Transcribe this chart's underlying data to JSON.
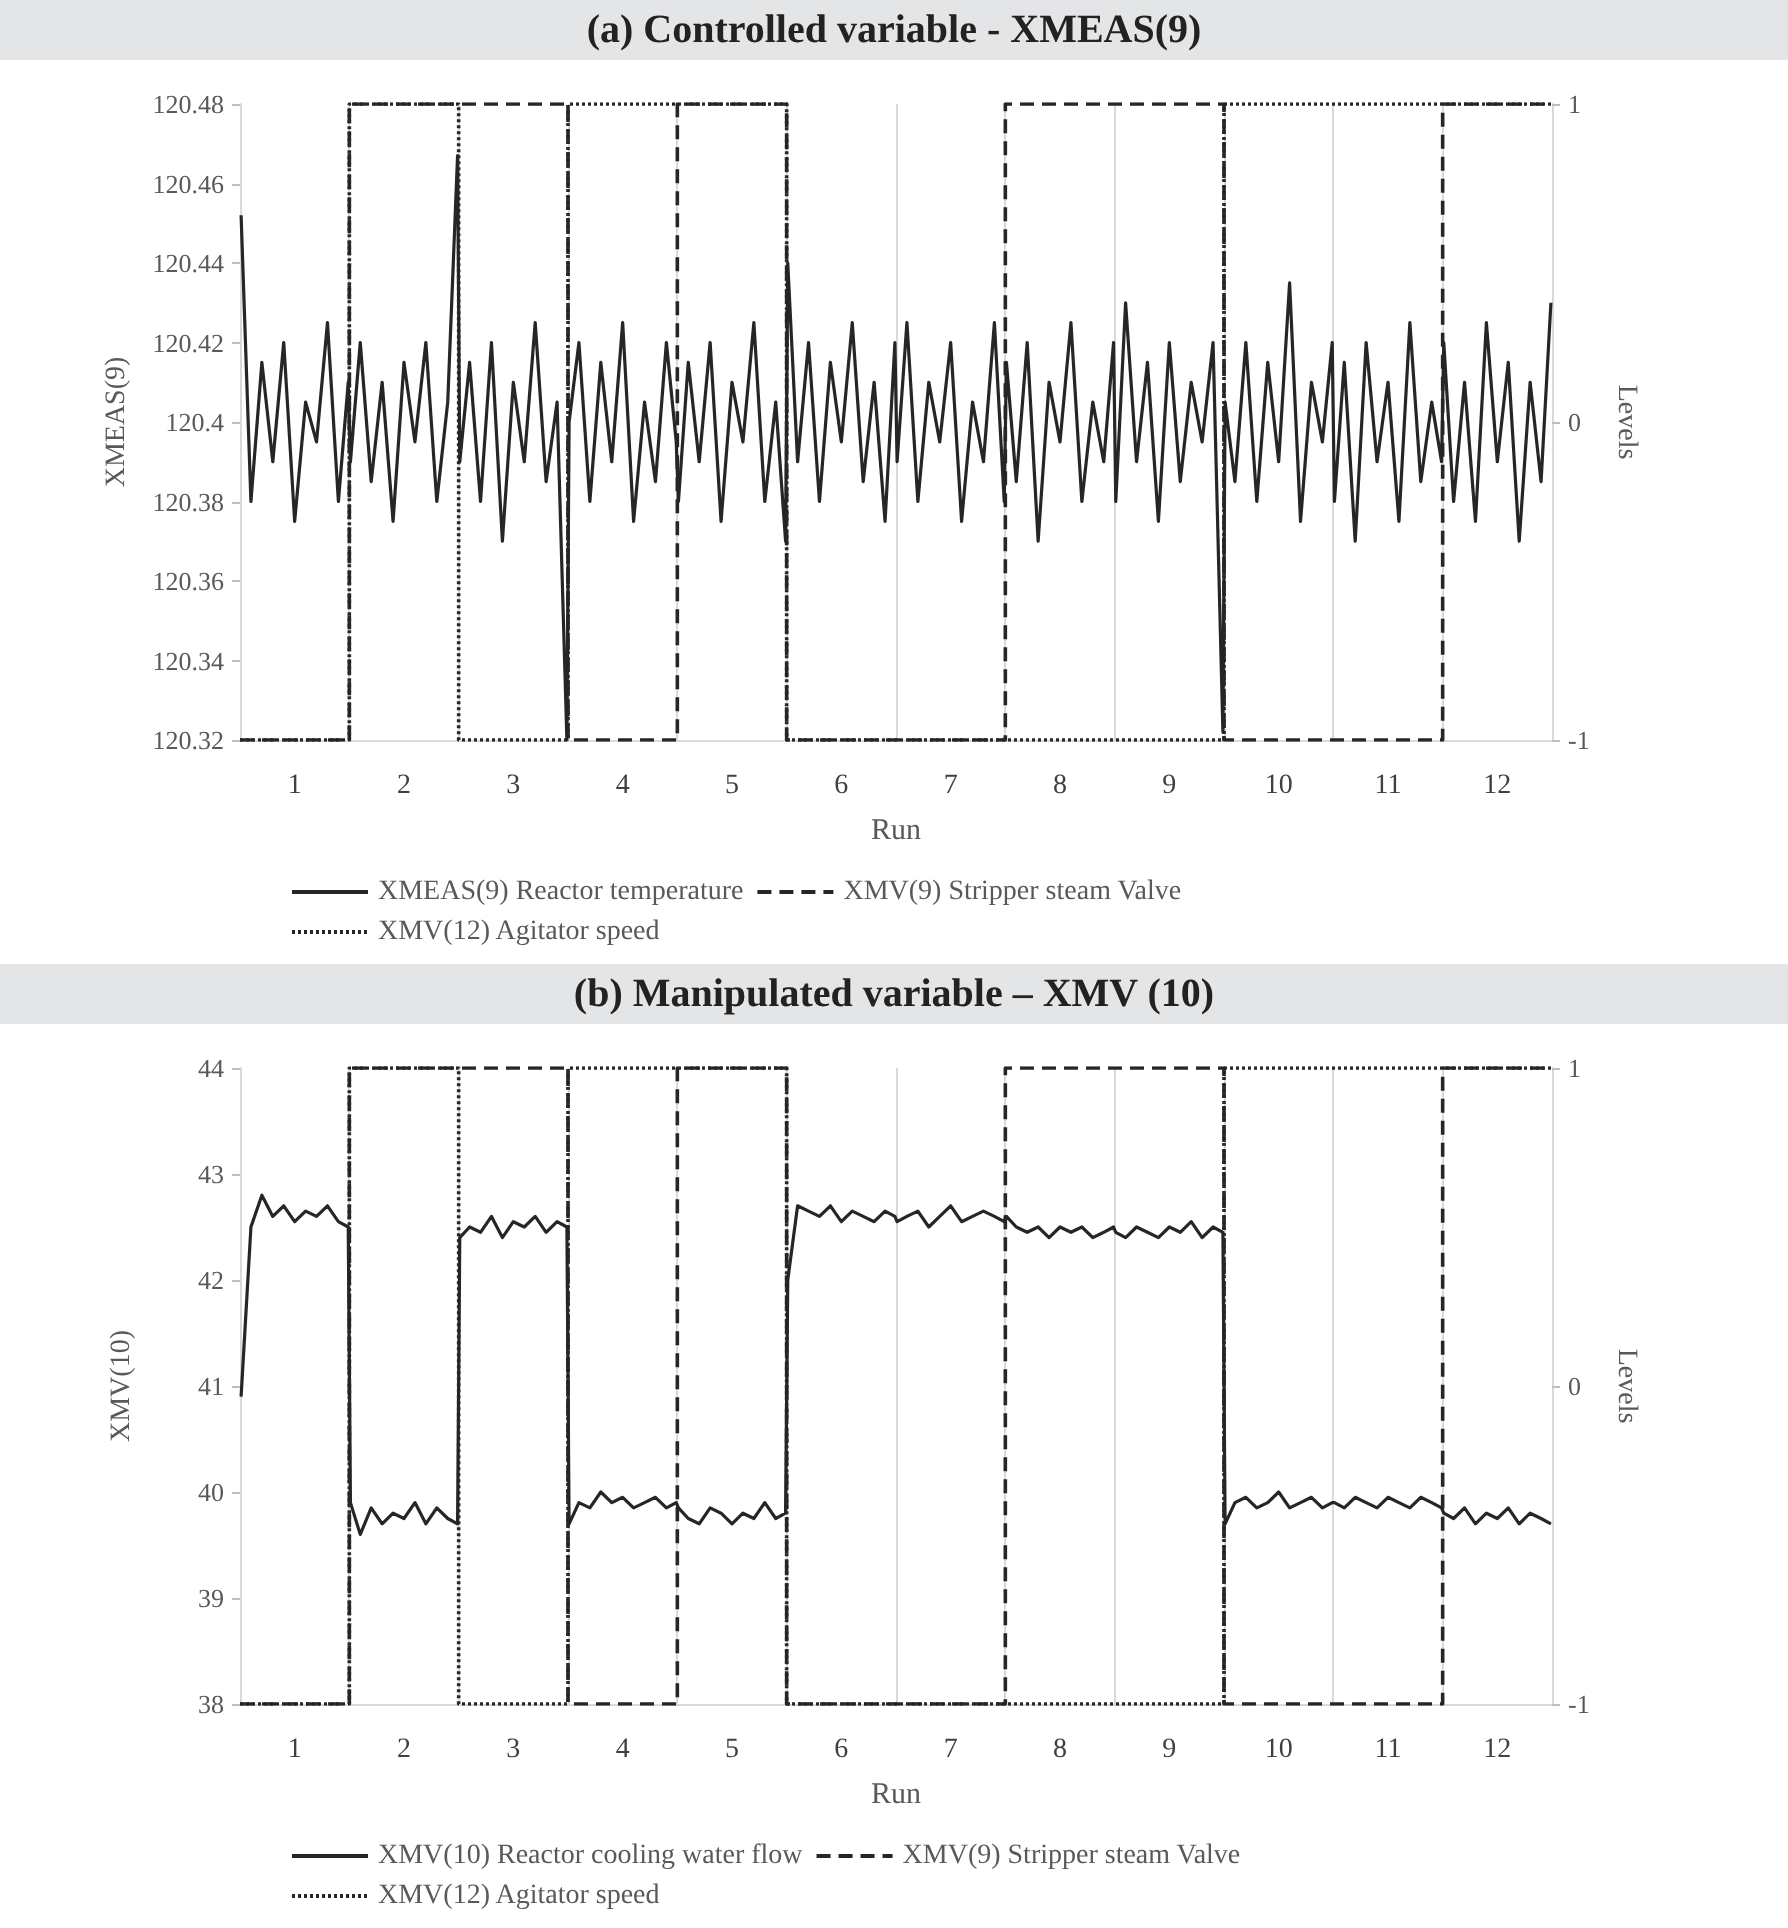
{
  "chart_data": [
    {
      "type": "line",
      "title": "(a) Controlled variable - XMEAS(9)",
      "xlabel": "Run",
      "ylabel": "XMEAS(9)",
      "y2label": "Levels",
      "x": [
        0.51,
        0.6,
        0.7,
        0.8,
        0.9,
        1,
        1.1,
        1.2,
        1.3,
        1.4,
        1.49,
        1.51,
        1.6,
        1.7,
        1.8,
        1.9,
        2,
        2.1,
        2.2,
        2.3,
        2.4,
        2.49,
        2.51,
        2.6,
        2.7,
        2.8,
        2.9,
        3,
        3.1,
        3.2,
        3.3,
        3.4,
        3.49,
        3.51,
        3.6,
        3.7,
        3.8,
        3.9,
        4,
        4.1,
        4.2,
        4.3,
        4.4,
        4.49,
        4.51,
        4.6,
        4.7,
        4.8,
        4.9,
        5,
        5.1,
        5.2,
        5.3,
        5.4,
        5.49,
        5.51,
        5.6,
        5.7,
        5.8,
        5.9,
        6,
        6.1,
        6.2,
        6.3,
        6.4,
        6.49,
        6.51,
        6.6,
        6.7,
        6.8,
        6.9,
        7,
        7.1,
        7.2,
        7.3,
        7.4,
        7.49,
        7.51,
        7.6,
        7.7,
        7.8,
        7.9,
        8,
        8.1,
        8.2,
        8.3,
        8.4,
        8.49,
        8.51,
        8.6,
        8.7,
        8.8,
        8.9,
        9,
        9.1,
        9.2,
        9.3,
        9.4,
        9.49,
        9.51,
        9.6,
        9.7,
        9.8,
        9.9,
        10,
        10.1,
        10.2,
        10.3,
        10.4,
        10.49,
        10.51,
        10.6,
        10.7,
        10.8,
        10.9,
        11,
        11.1,
        11.2,
        11.3,
        11.4,
        11.49,
        11.51,
        11.6,
        11.7,
        11.8,
        11.9,
        12,
        12.1,
        12.2,
        12.3,
        12.4,
        12.49
      ],
      "series": [
        {
          "name": "XMEAS(9) Reactor temperature",
          "color": "#262626",
          "line_style": "solid",
          "values": [
            120.452,
            120.38,
            120.415,
            120.39,
            120.42,
            120.375,
            120.405,
            120.395,
            120.425,
            120.38,
            120.41,
            120.39,
            120.42,
            120.385,
            120.41,
            120.375,
            120.415,
            120.395,
            120.42,
            120.38,
            120.405,
            120.467,
            120.39,
            120.415,
            120.38,
            120.42,
            120.37,
            120.41,
            120.39,
            120.425,
            120.385,
            120.405,
            120.32,
            120.4,
            120.42,
            120.38,
            120.415,
            120.39,
            120.425,
            120.375,
            120.405,
            120.385,
            120.42,
            120.395,
            120.38,
            120.415,
            120.39,
            120.42,
            120.375,
            120.41,
            120.395,
            120.425,
            120.38,
            120.405,
            120.37,
            120.44,
            120.39,
            120.42,
            120.38,
            120.415,
            120.395,
            120.425,
            120.385,
            120.41,
            120.375,
            120.42,
            120.39,
            120.425,
            120.38,
            120.41,
            120.395,
            120.42,
            120.375,
            120.405,
            120.39,
            120.425,
            120.38,
            120.415,
            120.385,
            120.42,
            120.37,
            120.41,
            120.395,
            120.425,
            120.38,
            120.405,
            120.39,
            120.42,
            120.38,
            120.43,
            120.39,
            120.415,
            120.375,
            120.42,
            120.385,
            120.41,
            120.395,
            120.42,
            120.322,
            120.405,
            120.385,
            120.42,
            120.38,
            120.415,
            120.39,
            120.435,
            120.375,
            120.41,
            120.395,
            120.42,
            120.38,
            120.415,
            120.37,
            120.42,
            120.39,
            120.41,
            120.375,
            120.425,
            120.385,
            120.405,
            120.39,
            120.42,
            120.38,
            120.41,
            120.375,
            120.425,
            120.39,
            120.415,
            120.37,
            120.41,
            120.385,
            120.43
          ]
        },
        {
          "name": "XMV(9) Stripper steam Valve",
          "type": "step",
          "axis": "y2",
          "color": "#262626",
          "line_style": "dashed",
          "x": [
            0.5,
            1.5,
            2.5,
            3.5,
            4.5,
            5.5,
            6.5,
            7.5,
            8.5,
            9.5,
            10.5,
            11.5,
            12.5
          ],
          "values": [
            -1,
            1,
            1,
            -1,
            1,
            -1,
            -1,
            1,
            1,
            -1,
            -1,
            1,
            1
          ]
        },
        {
          "name": "XMV(12) Agitator speed",
          "type": "step",
          "axis": "y2",
          "color": "#262626",
          "line_style": "dotted",
          "x": [
            0.5,
            1.5,
            2.5,
            3.5,
            4.5,
            5.5,
            6.5,
            7.5,
            8.5,
            9.5,
            10.5,
            11.5,
            12.5
          ],
          "values": [
            -1,
            1,
            -1,
            1,
            1,
            -1,
            -1,
            -1,
            -1,
            1,
            1,
            1,
            1
          ]
        }
      ],
      "xlim": [
        0.5,
        12.5
      ],
      "xticks": [
        {
          "value": 0.5,
          "label": null
        },
        1,
        {
          "value": 1.5,
          "label": null
        },
        2,
        {
          "value": 2.5,
          "label": null
        },
        3,
        {
          "value": 3.5,
          "label": null
        },
        4,
        {
          "value": 4.5,
          "label": null
        },
        5,
        {
          "value": 5.5,
          "label": null
        },
        6,
        {
          "value": 6.5,
          "label": null
        },
        7,
        {
          "value": 7.5,
          "label": null
        },
        8,
        {
          "value": 8.5,
          "label": null
        },
        9,
        {
          "value": 9.5,
          "label": null
        },
        10,
        {
          "value": 10.5,
          "label": null
        },
        11,
        {
          "value": 11.5,
          "label": null
        },
        12,
        {
          "value": 12.5,
          "label": null
        }
      ],
      "ylim": [
        120.32,
        120.48
      ],
      "yticks": [
        120.32,
        120.34,
        120.36,
        120.38,
        120.4,
        120.42,
        120.44,
        120.46,
        120.48
      ],
      "y2lim": [
        -1,
        1
      ],
      "y2ticks": [
        -1,
        0,
        1
      ],
      "grid": "x",
      "legend": "bottom"
    },
    {
      "type": "line",
      "title": "(b) Manipulated variable – XMV (10)",
      "xlabel": "Run",
      "ylabel": "XMV(10)",
      "y2label": "Levels",
      "x": [
        0.51,
        0.6,
        0.7,
        0.8,
        0.9,
        1,
        1.1,
        1.2,
        1.3,
        1.4,
        1.49,
        1.51,
        1.6,
        1.7,
        1.8,
        1.9,
        2,
        2.1,
        2.2,
        2.3,
        2.4,
        2.49,
        2.51,
        2.6,
        2.7,
        2.8,
        2.9,
        3,
        3.1,
        3.2,
        3.3,
        3.4,
        3.49,
        3.51,
        3.6,
        3.7,
        3.8,
        3.9,
        4,
        4.1,
        4.2,
        4.3,
        4.4,
        4.49,
        4.51,
        4.6,
        4.7,
        4.8,
        4.9,
        5,
        5.1,
        5.2,
        5.3,
        5.4,
        5.49,
        5.51,
        5.6,
        5.7,
        5.8,
        5.9,
        6,
        6.1,
        6.2,
        6.3,
        6.4,
        6.49,
        6.51,
        6.6,
        6.7,
        6.8,
        6.9,
        7,
        7.1,
        7.2,
        7.3,
        7.4,
        7.49,
        7.51,
        7.6,
        7.7,
        7.8,
        7.9,
        8,
        8.1,
        8.2,
        8.3,
        8.4,
        8.49,
        8.51,
        8.6,
        8.7,
        8.8,
        8.9,
        9,
        9.1,
        9.2,
        9.3,
        9.4,
        9.49,
        9.51,
        9.6,
        9.7,
        9.8,
        9.9,
        10,
        10.1,
        10.2,
        10.3,
        10.4,
        10.49,
        10.51,
        10.6,
        10.7,
        10.8,
        10.9,
        11,
        11.1,
        11.2,
        11.3,
        11.4,
        11.49,
        11.51,
        11.6,
        11.7,
        11.8,
        11.9,
        12,
        12.1,
        12.2,
        12.3,
        12.4,
        12.49
      ],
      "series": [
        {
          "name": "XMV(10) Reactor cooling water flow",
          "color": "#262626",
          "line_style": "solid",
          "values": [
            40.9,
            42.5,
            42.8,
            42.6,
            42.7,
            42.55,
            42.65,
            42.6,
            42.7,
            42.55,
            42.5,
            39.9,
            39.6,
            39.85,
            39.7,
            39.8,
            39.75,
            39.9,
            39.7,
            39.85,
            39.75,
            39.7,
            42.4,
            42.5,
            42.45,
            42.6,
            42.4,
            42.55,
            42.5,
            42.6,
            42.45,
            42.55,
            42.5,
            39.7,
            39.9,
            39.85,
            40.0,
            39.9,
            39.95,
            39.85,
            39.9,
            39.95,
            39.85,
            39.9,
            39.85,
            39.75,
            39.7,
            39.85,
            39.8,
            39.7,
            39.8,
            39.75,
            39.9,
            39.75,
            39.8,
            42.0,
            42.7,
            42.65,
            42.6,
            42.7,
            42.55,
            42.65,
            42.6,
            42.55,
            42.65,
            42.6,
            42.55,
            42.6,
            42.65,
            42.5,
            42.6,
            42.7,
            42.55,
            42.6,
            42.65,
            42.6,
            42.55,
            42.6,
            42.5,
            42.45,
            42.5,
            42.4,
            42.5,
            42.45,
            42.5,
            42.4,
            42.45,
            42.5,
            42.45,
            42.4,
            42.5,
            42.45,
            42.4,
            42.5,
            42.45,
            42.55,
            42.4,
            42.5,
            42.45,
            39.7,
            39.9,
            39.95,
            39.85,
            39.9,
            40.0,
            39.85,
            39.9,
            39.95,
            39.85,
            39.9,
            39.9,
            39.85,
            39.95,
            39.9,
            39.85,
            39.95,
            39.9,
            39.85,
            39.95,
            39.9,
            39.85,
            39.8,
            39.75,
            39.85,
            39.7,
            39.8,
            39.75,
            39.85,
            39.7,
            39.8,
            39.75,
            39.7
          ]
        },
        {
          "name": "XMV(9) Stripper steam Valve",
          "type": "step",
          "axis": "y2",
          "color": "#262626",
          "line_style": "dashed",
          "x": [
            0.5,
            1.5,
            2.5,
            3.5,
            4.5,
            5.5,
            6.5,
            7.5,
            8.5,
            9.5,
            10.5,
            11.5,
            12.5
          ],
          "values": [
            -1,
            1,
            1,
            -1,
            1,
            -1,
            -1,
            1,
            1,
            -1,
            -1,
            1,
            1
          ]
        },
        {
          "name": "XMV(12) Agitator speed",
          "type": "step",
          "axis": "y2",
          "color": "#262626",
          "line_style": "dotted",
          "x": [
            0.5,
            1.5,
            2.5,
            3.5,
            4.5,
            5.5,
            6.5,
            7.5,
            8.5,
            9.5,
            10.5,
            11.5,
            12.5
          ],
          "values": [
            -1,
            1,
            -1,
            1,
            1,
            -1,
            -1,
            -1,
            -1,
            1,
            1,
            1,
            1
          ]
        }
      ],
      "xlim": [
        0.5,
        12.5
      ],
      "xticks": [
        {
          "value": 0.5,
          "label": null
        },
        1,
        {
          "value": 1.5,
          "label": null
        },
        2,
        {
          "value": 2.5,
          "label": null
        },
        3,
        {
          "value": 3.5,
          "label": null
        },
        4,
        {
          "value": 4.5,
          "label": null
        },
        5,
        {
          "value": 5.5,
          "label": null
        },
        6,
        {
          "value": 6.5,
          "label": null
        },
        7,
        {
          "value": 7.5,
          "label": null
        },
        8,
        {
          "value": 8.5,
          "label": null
        },
        9,
        {
          "value": 9.5,
          "label": null
        },
        10,
        {
          "value": 10.5,
          "label": null
        },
        11,
        {
          "value": 11.5,
          "label": null
        },
        12,
        {
          "value": 12.5,
          "label": null
        }
      ],
      "ylim": [
        38,
        44
      ],
      "yticks": [
        38,
        39,
        40,
        41,
        42,
        43,
        44
      ],
      "y2lim": [
        -1,
        1
      ],
      "y2ticks": [
        -1,
        0,
        1
      ],
      "grid": "x",
      "legend": "bottom"
    }
  ]
}
